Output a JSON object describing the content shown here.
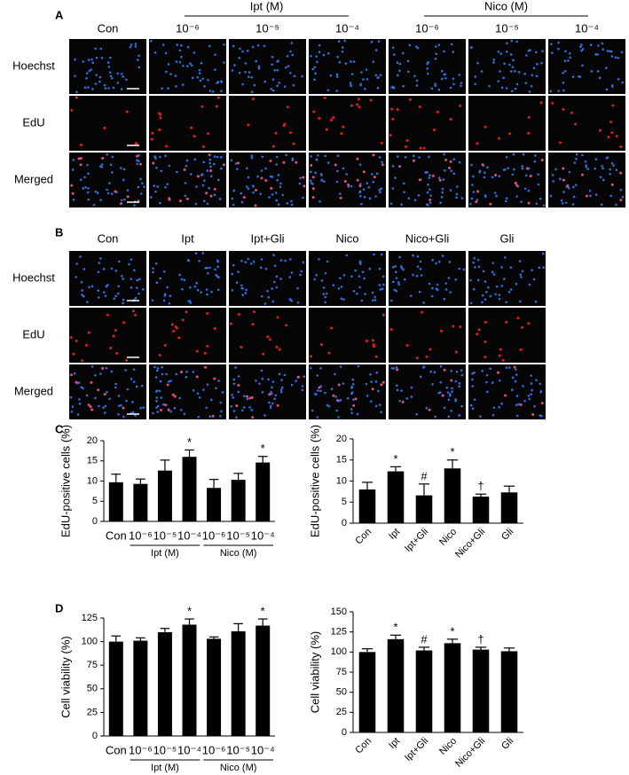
{
  "panels": [
    {
      "label": "A",
      "group_headers": [
        "Ipt (M)",
        "Nico (M)"
      ],
      "columns": [
        "Con",
        "10⁻⁶",
        "10⁻⁵",
        "10⁻⁴",
        "10⁻⁶",
        "10⁻⁵",
        "10⁻⁴"
      ],
      "rows": [
        "Hoechst",
        "EdU",
        "Merged"
      ]
    },
    {
      "label": "B",
      "columns": [
        "Con",
        "Ipt",
        "Ipt+Gli",
        "Nico",
        "Nico+Gli",
        "Gli"
      ],
      "rows": [
        "Hoechst",
        "EdU",
        "Merged"
      ]
    },
    {
      "label": "C"
    },
    {
      "label": "D"
    }
  ],
  "chart_data": [
    {
      "type": "bar",
      "ylabel": "EdU-positive cells (%)",
      "color": "#000000",
      "categories": [
        "Con",
        "10⁻⁶",
        "10⁻⁵",
        "10⁻⁴",
        "10⁻⁶",
        "10⁻⁵",
        "10⁻⁴"
      ],
      "group_labels": [
        "Ipt (M)",
        "Nico (M)"
      ],
      "values": [
        9.7,
        9.3,
        12.6,
        16.0,
        8.3,
        10.3,
        14.6
      ],
      "errors": [
        2.0,
        1.2,
        2.6,
        1.7,
        2.1,
        1.6,
        1.5
      ],
      "significance": [
        null,
        null,
        null,
        "*",
        null,
        null,
        "*"
      ],
      "ylim": [
        0,
        20
      ],
      "yticks": [
        0,
        5,
        10,
        15,
        20
      ]
    },
    {
      "type": "bar",
      "ylabel": "EdU-positive cells (%)",
      "color": "#000000",
      "categories": [
        "Con",
        "Ipt",
        "Ipt+Gli",
        "Nico",
        "Nico+Gli",
        "Gli"
      ],
      "values": [
        8.0,
        12.3,
        6.6,
        13.0,
        6.3,
        7.3
      ],
      "errors": [
        1.7,
        1.1,
        2.7,
        2.0,
        0.6,
        1.5
      ],
      "significance": [
        null,
        "*",
        "#",
        "*",
        "†",
        null
      ],
      "ylim": [
        0,
        20
      ],
      "yticks": [
        0,
        5,
        10,
        15,
        20
      ]
    },
    {
      "type": "bar",
      "ylabel": "Cell viability (%)",
      "color": "#000000",
      "categories": [
        "Con",
        "10⁻⁶",
        "10⁻⁵",
        "10⁻⁴",
        "10⁻⁶",
        "10⁻⁵",
        "10⁻⁴"
      ],
      "group_labels": [
        "Ipt (M)",
        "Nico (M)"
      ],
      "values": [
        100,
        101,
        110,
        118,
        103,
        111,
        117
      ],
      "errors": [
        6,
        3,
        4,
        6,
        2,
        8,
        7
      ],
      "significance": [
        null,
        null,
        null,
        "*",
        null,
        null,
        "*"
      ],
      "ylim": [
        0,
        125
      ],
      "yticks": [
        0,
        25,
        50,
        75,
        100,
        125
      ]
    },
    {
      "type": "bar",
      "ylabel": "Cell viability (%)",
      "color": "#000000",
      "categories": [
        "Con",
        "Ipt",
        "Ipt+Gli",
        "Nico",
        "Nico+Gli",
        "Gli"
      ],
      "values": [
        100,
        116,
        102,
        111,
        103,
        101
      ],
      "errors": [
        4,
        5,
        4,
        5,
        3,
        4
      ],
      "significance": [
        null,
        "*",
        "#",
        "*",
        "†",
        null
      ],
      "ylim": [
        0,
        150
      ],
      "yticks": [
        0,
        25,
        50,
        75,
        100,
        125,
        150
      ]
    }
  ]
}
